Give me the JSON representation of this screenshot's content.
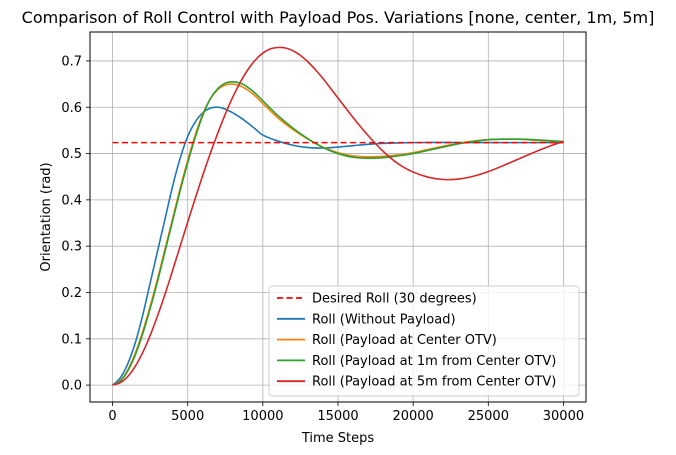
{
  "chart_data": {
    "type": "line",
    "title": "Comparison of Roll Control with Payload Pos. Variations [none, center, 1m, 5m]",
    "xlabel": "Time Steps",
    "ylabel": "Orientation (rad)",
    "xlim": [
      -1500,
      31500
    ],
    "ylim": [
      -0.0365,
      0.7625
    ],
    "xticks": [
      0,
      5000,
      10000,
      15000,
      20000,
      25000,
      30000
    ],
    "yticks": [
      0.0,
      0.1,
      0.2,
      0.3,
      0.4,
      0.5,
      0.6,
      0.7
    ],
    "xtick_labels": [
      "0",
      "5000",
      "10000",
      "15000",
      "20000",
      "25000",
      "30000"
    ],
    "ytick_labels": [
      "0.0",
      "0.1",
      "0.2",
      "0.3",
      "0.4",
      "0.5",
      "0.6",
      "0.7"
    ],
    "grid": true,
    "legend_position": "lower-right",
    "series": [
      {
        "name": "Desired Roll (30 degrees)",
        "color": "#ff0000",
        "dashed": true,
        "x": [
          0,
          30000
        ],
        "y": [
          0.5236,
          0.5236
        ]
      },
      {
        "name": "Roll (Without Payload)",
        "color": "#1f77b4",
        "x": [
          0,
          500,
          1000,
          1500,
          2000,
          2500,
          3000,
          3500,
          4000,
          4500,
          5000,
          5500,
          6000,
          6500,
          7000,
          7500,
          8000,
          8500,
          9000,
          9500,
          10000,
          11000,
          12000,
          13000,
          14000,
          15000,
          16000,
          17000,
          18000,
          19000,
          20000,
          22000,
          24000,
          26000,
          28000,
          30000
        ],
        "y": [
          0.0,
          0.015,
          0.045,
          0.09,
          0.15,
          0.22,
          0.29,
          0.36,
          0.43,
          0.49,
          0.537,
          0.568,
          0.588,
          0.598,
          0.6,
          0.596,
          0.588,
          0.578,
          0.566,
          0.553,
          0.54,
          0.527,
          0.518,
          0.513,
          0.512,
          0.514,
          0.517,
          0.52,
          0.522,
          0.523,
          0.5236,
          0.524,
          0.5238,
          0.5236,
          0.5236,
          0.5236
        ]
      },
      {
        "name": "Roll (Payload at Center OTV)",
        "color": "#ff7f0e",
        "x": [
          0,
          500,
          1000,
          1500,
          2000,
          2500,
          3000,
          3500,
          4000,
          4500,
          5000,
          5500,
          6000,
          6500,
          7000,
          7500,
          8000,
          8500,
          9000,
          9500,
          10000,
          11000,
          12000,
          13000,
          14000,
          15000,
          16000,
          17000,
          18000,
          19000,
          20000,
          21000,
          22000,
          23000,
          24000,
          25000,
          26000,
          27000,
          28000,
          29000,
          30000
        ],
        "y": [
          0.0,
          0.009,
          0.032,
          0.068,
          0.115,
          0.17,
          0.23,
          0.295,
          0.36,
          0.425,
          0.485,
          0.54,
          0.585,
          0.618,
          0.638,
          0.648,
          0.65,
          0.646,
          0.637,
          0.624,
          0.608,
          0.577,
          0.552,
          0.531,
          0.514,
          0.502,
          0.495,
          0.493,
          0.494,
          0.497,
          0.502,
          0.509,
          0.516,
          0.522,
          0.527,
          0.53,
          0.531,
          0.531,
          0.529,
          0.527,
          0.526
        ]
      },
      {
        "name": "Roll (Payload at 1m from Center OTV)",
        "color": "#2ca02c",
        "x": [
          0,
          500,
          1000,
          1500,
          2000,
          2500,
          3000,
          3500,
          4000,
          4500,
          5000,
          5500,
          6000,
          6500,
          7000,
          7500,
          8000,
          8500,
          9000,
          9500,
          10000,
          11000,
          12000,
          13000,
          14000,
          15000,
          16000,
          17000,
          18000,
          19000,
          20000,
          21000,
          22000,
          23000,
          24000,
          25000,
          26000,
          27000,
          28000,
          29000,
          30000
        ],
        "y": [
          0.0,
          0.008,
          0.03,
          0.064,
          0.11,
          0.165,
          0.225,
          0.29,
          0.355,
          0.42,
          0.48,
          0.535,
          0.582,
          0.618,
          0.64,
          0.652,
          0.655,
          0.652,
          0.643,
          0.63,
          0.614,
          0.582,
          0.555,
          0.532,
          0.513,
          0.5,
          0.492,
          0.49,
          0.491,
          0.495,
          0.5,
          0.507,
          0.514,
          0.521,
          0.526,
          0.53,
          0.531,
          0.531,
          0.53,
          0.528,
          0.526
        ]
      },
      {
        "name": "Roll (Payload at 5m from Center OTV)",
        "color": "#d62728",
        "x": [
          0,
          500,
          1000,
          1500,
          2000,
          2500,
          3000,
          3500,
          4000,
          4500,
          5000,
          5500,
          6000,
          6500,
          7000,
          7500,
          8000,
          8500,
          9000,
          9500,
          10000,
          10500,
          11000,
          11500,
          12000,
          12500,
          13000,
          13500,
          14000,
          15000,
          16000,
          17000,
          18000,
          19000,
          20000,
          21000,
          22000,
          23000,
          24000,
          25000,
          26000,
          27000,
          28000,
          29000,
          30000
        ],
        "y": [
          0.0,
          0.005,
          0.018,
          0.04,
          0.07,
          0.107,
          0.15,
          0.197,
          0.248,
          0.3,
          0.352,
          0.403,
          0.453,
          0.5,
          0.544,
          0.585,
          0.622,
          0.654,
          0.681,
          0.702,
          0.717,
          0.726,
          0.729,
          0.728,
          0.722,
          0.712,
          0.698,
          0.681,
          0.662,
          0.62,
          0.578,
          0.539,
          0.505,
          0.478,
          0.46,
          0.449,
          0.444,
          0.445,
          0.451,
          0.461,
          0.474,
          0.488,
          0.502,
          0.515,
          0.526
        ]
      }
    ]
  }
}
